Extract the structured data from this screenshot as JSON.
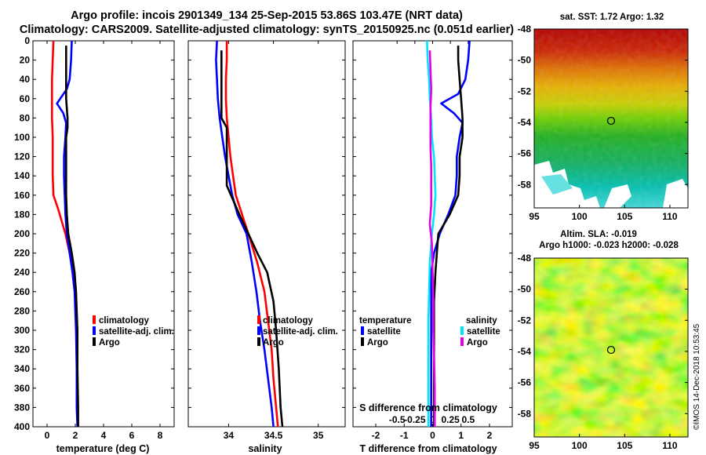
{
  "figure": {
    "title_line1": "Argo profile: incois 2901349_134 25-Sep-2015 53.86S 103.47E (NRT data)",
    "title_line2": "Climatology: CARS2009. Satellite-adjusted climatology: synTS_20150925.nc (0.051d earlier)",
    "credit": "©IMOS 14-Dec-2018 10:53:45"
  },
  "colors": {
    "climatology": "#ff0000",
    "satellite": "#0000ff",
    "argo": "#000000",
    "salinity_satellite": "#00e5ff",
    "salinity_argo": "#e600e6"
  },
  "depth_axis": {
    "range": [
      0,
      400
    ],
    "ticks": [
      0,
      20,
      40,
      60,
      80,
      100,
      120,
      140,
      160,
      180,
      200,
      220,
      240,
      260,
      280,
      300,
      320,
      340,
      360,
      380,
      400
    ],
    "tick_labels": [
      "0",
      "20",
      "40",
      "60",
      "80",
      "100",
      "120",
      "140",
      "160",
      "180",
      "200",
      "220",
      "240",
      "260",
      "280",
      "300",
      "320",
      "340",
      "360",
      "380",
      "400"
    ]
  },
  "chart_data": [
    {
      "type": "line",
      "id": "temperature",
      "xlabel": "temperature (deg C)",
      "xlim": [
        -1,
        9
      ],
      "xticks": [
        0,
        2,
        4,
        6,
        8
      ],
      "xtick_labels": [
        "0",
        "2",
        "4",
        "6",
        "8"
      ],
      "ylim": [
        400,
        0
      ],
      "legend": [
        "climatology",
        "satellite-adj. clim.",
        "Argo"
      ],
      "series": [
        {
          "name": "climatology",
          "color": "#ff0000",
          "points": [
            [
              0.45,
              0
            ],
            [
              0.4,
              20
            ],
            [
              0.35,
              40
            ],
            [
              0.35,
              60
            ],
            [
              0.35,
              80
            ],
            [
              0.4,
              100
            ],
            [
              0.4,
              120
            ],
            [
              0.4,
              140
            ],
            [
              0.45,
              160
            ],
            [
              0.8,
              175
            ],
            [
              1.1,
              190
            ],
            [
              1.3,
              200
            ],
            [
              1.6,
              220
            ],
            [
              1.85,
              240
            ],
            [
              2.0,
              260
            ],
            [
              2.05,
              280
            ],
            [
              2.1,
              300
            ],
            [
              2.15,
              340
            ],
            [
              2.15,
              380
            ],
            [
              2.2,
              400
            ]
          ]
        },
        {
          "name": "satellite-adj. clim.",
          "color": "#0000ff",
          "points": [
            [
              1.75,
              0
            ],
            [
              1.7,
              20
            ],
            [
              1.6,
              40
            ],
            [
              1.4,
              50
            ],
            [
              0.7,
              65
            ],
            [
              1.15,
              75
            ],
            [
              1.35,
              85
            ],
            [
              1.3,
              100
            ],
            [
              1.2,
              120
            ],
            [
              1.2,
              140
            ],
            [
              1.25,
              160
            ],
            [
              1.3,
              180
            ],
            [
              1.4,
              200
            ],
            [
              1.6,
              220
            ],
            [
              1.8,
              240
            ],
            [
              1.95,
              260
            ],
            [
              2.0,
              280
            ],
            [
              2.05,
              300
            ],
            [
              2.1,
              340
            ],
            [
              2.1,
              380
            ],
            [
              2.15,
              400
            ]
          ]
        },
        {
          "name": "Argo",
          "color": "#000000",
          "points": [
            [
              1.35,
              5
            ],
            [
              1.35,
              20
            ],
            [
              1.35,
              40
            ],
            [
              1.35,
              60
            ],
            [
              1.45,
              80
            ],
            [
              1.45,
              90
            ],
            [
              1.35,
              100
            ],
            [
              1.35,
              120
            ],
            [
              1.35,
              140
            ],
            [
              1.35,
              160
            ],
            [
              1.4,
              180
            ],
            [
              1.5,
              200
            ],
            [
              1.75,
              220
            ],
            [
              1.95,
              240
            ],
            [
              2.05,
              260
            ],
            [
              2.1,
              280
            ],
            [
              2.15,
              300
            ],
            [
              2.15,
              340
            ],
            [
              2.2,
              380
            ],
            [
              2.2,
              400
            ]
          ]
        }
      ]
    },
    {
      "type": "line",
      "id": "salinity",
      "xlabel": "salinity",
      "xlim": [
        33.55,
        35.3
      ],
      "xticks": [
        34,
        34.5,
        35
      ],
      "xtick_labels": [
        "34",
        "34.5",
        "35"
      ],
      "ylim": [
        400,
        0
      ],
      "legend": [
        "climatology",
        "satellite-adj. clim.",
        "Argo"
      ],
      "series": [
        {
          "name": "climatology",
          "color": "#ff0000",
          "points": [
            [
              33.98,
              0
            ],
            [
              33.98,
              20
            ],
            [
              33.97,
              40
            ],
            [
              33.97,
              60
            ],
            [
              33.98,
              80
            ],
            [
              34.0,
              100
            ],
            [
              34.02,
              120
            ],
            [
              34.05,
              140
            ],
            [
              34.08,
              160
            ],
            [
              34.15,
              180
            ],
            [
              34.22,
              200
            ],
            [
              34.32,
              230
            ],
            [
              34.4,
              260
            ],
            [
              34.44,
              290
            ],
            [
              34.48,
              320
            ],
            [
              34.5,
              350
            ],
            [
              34.53,
              380
            ],
            [
              34.55,
              400
            ]
          ]
        },
        {
          "name": "satellite-adj. clim.",
          "color": "#0000ff",
          "points": [
            [
              33.87,
              0
            ],
            [
              33.86,
              20
            ],
            [
              33.87,
              40
            ],
            [
              33.88,
              60
            ],
            [
              33.9,
              80
            ],
            [
              33.93,
              100
            ],
            [
              33.96,
              120
            ],
            [
              34.0,
              140
            ],
            [
              34.04,
              160
            ],
            [
              34.1,
              180
            ],
            [
              34.2,
              200
            ],
            [
              34.26,
              230
            ],
            [
              34.31,
              260
            ],
            [
              34.35,
              290
            ],
            [
              34.4,
              320
            ],
            [
              34.44,
              350
            ],
            [
              34.48,
              380
            ],
            [
              34.5,
              400
            ]
          ]
        },
        {
          "name": "Argo",
          "color": "#000000",
          "points": [
            [
              33.92,
              10
            ],
            [
              33.92,
              30
            ],
            [
              33.92,
              60
            ],
            [
              33.92,
              80
            ],
            [
              33.98,
              90
            ],
            [
              33.98,
              110
            ],
            [
              33.98,
              130
            ],
            [
              33.98,
              150
            ],
            [
              34.05,
              165
            ],
            [
              34.12,
              180
            ],
            [
              34.22,
              200
            ],
            [
              34.32,
              220
            ],
            [
              34.43,
              240
            ],
            [
              34.5,
              270
            ],
            [
              34.53,
              300
            ],
            [
              34.56,
              340
            ],
            [
              34.58,
              380
            ],
            [
              34.6,
              400
            ]
          ]
        }
      ]
    },
    {
      "type": "line",
      "id": "difference",
      "xlabel": "T difference from climatology",
      "top_label": "S difference from climatology",
      "xlim": [
        -2.8,
        2.8
      ],
      "xticks": [
        -2,
        -1,
        0,
        1,
        2
      ],
      "xtick_labels": [
        "-2",
        "-1",
        "0",
        "1",
        "2"
      ],
      "sticks": [
        -0.5,
        -0.25,
        0,
        0.25,
        0.5
      ],
      "stick_labels": [
        "-0.5",
        "-0.25",
        "0",
        "0.25",
        "0.5"
      ],
      "ylim": [
        400,
        0
      ],
      "legend_temperature_title": "temperature",
      "legend_salinity_title": "salinity",
      "legend_temperature": [
        "satellite",
        "Argo"
      ],
      "legend_salinity": [
        "satellite",
        "Argo"
      ],
      "series": [
        {
          "name": "T satellite",
          "color": "#0000ff",
          "points": [
            [
              1.3,
              0
            ],
            [
              1.25,
              20
            ],
            [
              1.15,
              40
            ],
            [
              0.9,
              55
            ],
            [
              0.3,
              65
            ],
            [
              0.75,
              75
            ],
            [
              1.05,
              85
            ],
            [
              0.95,
              100
            ],
            [
              0.85,
              120
            ],
            [
              0.85,
              140
            ],
            [
              0.8,
              160
            ],
            [
              0.55,
              180
            ],
            [
              0.25,
              200
            ],
            [
              0.05,
              220
            ],
            [
              -0.05,
              240
            ],
            [
              -0.05,
              260
            ],
            [
              -0.05,
              300
            ],
            [
              -0.05,
              350
            ],
            [
              -0.05,
              400
            ]
          ]
        },
        {
          "name": "T Argo",
          "color": "#000000",
          "points": [
            [
              0.9,
              5
            ],
            [
              0.9,
              20
            ],
            [
              0.95,
              40
            ],
            [
              1.0,
              60
            ],
            [
              1.05,
              80
            ],
            [
              1.05,
              100
            ],
            [
              0.95,
              120
            ],
            [
              0.95,
              140
            ],
            [
              0.9,
              160
            ],
            [
              0.6,
              180
            ],
            [
              0.2,
              200
            ],
            [
              0.15,
              220
            ],
            [
              0.1,
              240
            ],
            [
              0.05,
              270
            ],
            [
              0.05,
              300
            ],
            [
              0.05,
              340
            ],
            [
              0.05,
              380
            ],
            [
              0.05,
              400
            ]
          ]
        },
        {
          "name": "S satellite",
          "color": "#00e5ff",
          "points": [
            [
              -0.08,
              0
            ],
            [
              -0.07,
              20
            ],
            [
              -0.05,
              40
            ],
            [
              -0.04,
              60
            ],
            [
              -0.02,
              80
            ],
            [
              -0.01,
              100
            ],
            [
              0.02,
              120
            ],
            [
              0.03,
              140
            ],
            [
              0.04,
              160
            ],
            [
              0.02,
              180
            ],
            [
              -0.01,
              200
            ],
            [
              -0.04,
              230
            ],
            [
              -0.05,
              260
            ],
            [
              -0.06,
              290
            ],
            [
              -0.06,
              320
            ],
            [
              -0.06,
              360
            ],
            [
              -0.06,
              400
            ]
          ]
        },
        {
          "name": "S Argo",
          "color": "#e600e6",
          "points": [
            [
              -0.04,
              10
            ],
            [
              -0.03,
              30
            ],
            [
              -0.02,
              50
            ],
            [
              -0.03,
              70
            ],
            [
              -0.03,
              90
            ],
            [
              -0.03,
              110
            ],
            [
              -0.02,
              130
            ],
            [
              -0.02,
              150
            ],
            [
              -0.02,
              170
            ],
            [
              -0.04,
              190
            ],
            [
              -0.01,
              210
            ],
            [
              0.0,
              240
            ],
            [
              0.01,
              270
            ],
            [
              0.01,
              300
            ],
            [
              0.02,
              330
            ],
            [
              0.03,
              360
            ],
            [
              0.03,
              400
            ]
          ]
        }
      ]
    },
    {
      "type": "heatmap",
      "id": "sst_map",
      "title": "sat. SST: 1.72 Argo: 1.32",
      "xlim": [
        95,
        112
      ],
      "ylim": [
        -59.5,
        -48
      ],
      "xticks": [
        95,
        100,
        105,
        110
      ],
      "xtick_labels": [
        "95",
        "100",
        "105",
        "110"
      ],
      "yticks": [
        -48,
        -50,
        -52,
        -54,
        -56,
        -58
      ],
      "ytick_labels": [
        "-48",
        "-50",
        "-52",
        "-54",
        "-56",
        "-58"
      ],
      "marker": [
        103.5,
        -53.9
      ]
    },
    {
      "type": "heatmap",
      "id": "sla_map",
      "title": "Altim. SLA: -0.019",
      "subtitle": "Argo h1000: -0.023 h2000: -0.028",
      "xlim": [
        95,
        112
      ],
      "ylim": [
        -59.5,
        -48
      ],
      "xticks": [
        95,
        100,
        105,
        110
      ],
      "xtick_labels": [
        "95",
        "100",
        "105",
        "110"
      ],
      "yticks": [
        -48,
        -50,
        -52,
        -54,
        -56,
        -58
      ],
      "ytick_labels": [
        "-48",
        "-50",
        "-52",
        "-54",
        "-56",
        "-58"
      ],
      "marker": [
        103.5,
        -53.9
      ]
    }
  ]
}
